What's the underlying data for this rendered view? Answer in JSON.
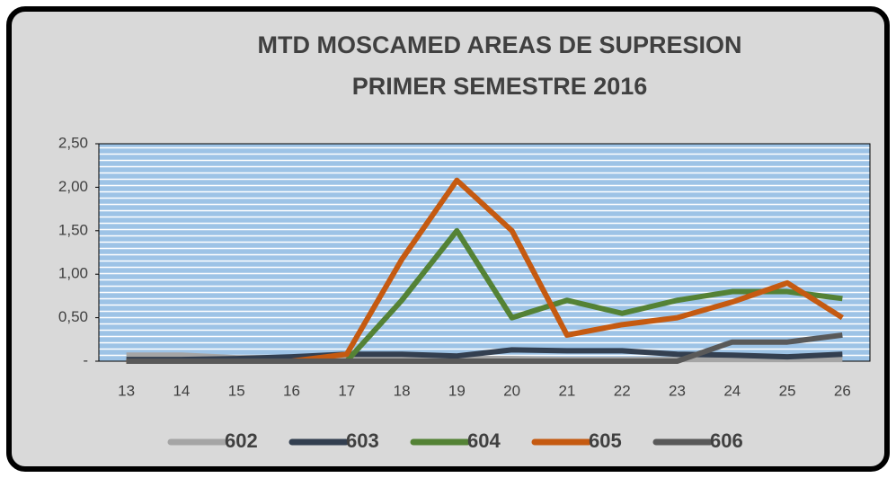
{
  "chart_data": {
    "type": "line",
    "title": "MTD  MOSCAMED AREAS DE SUPRESION",
    "subtitle": "PRIMER SEMESTRE 2016",
    "categories": [
      "13",
      "14",
      "15",
      "16",
      "17",
      "18",
      "19",
      "20",
      "21",
      "22",
      "23",
      "24",
      "25",
      "26"
    ],
    "series": [
      {
        "name": "602",
        "color": "#a5a5a5",
        "values": [
          0.07,
          0.07,
          0.04,
          0.04,
          0.03,
          0.03,
          0.03,
          0.03,
          0.02,
          0.02,
          0.02,
          0.02,
          0.02,
          0.02
        ]
      },
      {
        "name": "603",
        "color": "#333f50",
        "values": [
          0.02,
          0.02,
          0.03,
          0.05,
          0.08,
          0.08,
          0.06,
          0.13,
          0.12,
          0.12,
          0.08,
          0.07,
          0.05,
          0.08
        ]
      },
      {
        "name": "604",
        "color": "#548235",
        "values": [
          0,
          0,
          0,
          0,
          0,
          0.7,
          1.5,
          0.5,
          0.7,
          0.55,
          0.7,
          0.8,
          0.8,
          0.72
        ]
      },
      {
        "name": "605",
        "color": "#c55a11",
        "values": [
          0,
          0,
          0,
          0,
          0.08,
          1.17,
          2.08,
          1.5,
          0.3,
          0.42,
          0.5,
          0.68,
          0.9,
          0.5
        ]
      },
      {
        "name": "606",
        "color": "#595959",
        "values": [
          0,
          0,
          0,
          0,
          0,
          0,
          0,
          0,
          0,
          0,
          0,
          0.22,
          0.22,
          0.3
        ]
      }
    ],
    "ylim": [
      0,
      2.5
    ],
    "yticks": [
      {
        "value": 0,
        "label": "-"
      },
      {
        "value": 0.5,
        "label": "0,50"
      },
      {
        "value": 1,
        "label": "1,00"
      },
      {
        "value": 1.5,
        "label": "1,50"
      },
      {
        "value": 2,
        "label": "2,00"
      },
      {
        "value": 2.5,
        "label": "2,50"
      }
    ],
    "legend": "bottom"
  }
}
